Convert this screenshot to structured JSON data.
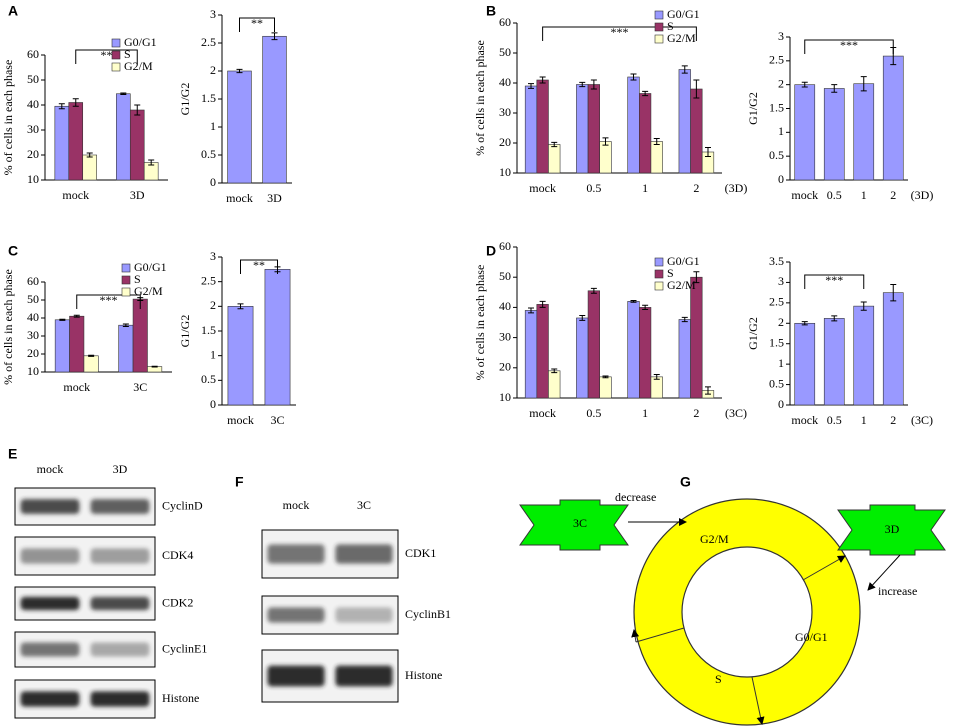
{
  "panel_labels": [
    "A",
    "B",
    "C",
    "D",
    "E",
    "F",
    "G"
  ],
  "chart_data": [
    {
      "type": "bar",
      "ylabel": "% of cells in each phase",
      "annotation": "**",
      "categories": [
        "mock",
        "3D"
      ],
      "series": [
        {
          "name": "G0/G1",
          "color": "#9999ff",
          "values": [
            39.5,
            44.5
          ],
          "errors": [
            1,
            0.3
          ]
        },
        {
          "name": "S",
          "color": "#993366",
          "values": [
            41,
            38
          ],
          "errors": [
            1.5,
            2
          ]
        },
        {
          "name": "G2/M",
          "color": "#ffffcc",
          "values": [
            20,
            17
          ],
          "errors": [
            0.8,
            1
          ]
        }
      ],
      "ylim": [
        10,
        60
      ],
      "yticks": [
        10,
        20,
        30,
        40,
        50,
        60
      ]
    },
    {
      "type": "bar",
      "ylabel": "G1/G2",
      "annotation": "**",
      "categories": [
        "mock",
        "3D"
      ],
      "values": [
        2.0,
        2.62
      ],
      "errors": [
        0.03,
        0.06
      ],
      "color": "#9999ff",
      "ylim": [
        0,
        3
      ],
      "yticks": [
        0,
        0.5,
        1,
        1.5,
        2,
        2.5,
        3
      ]
    },
    {
      "type": "bar",
      "ylabel": "% of cells in each phase",
      "annotation": "***",
      "x_unit": "(3D)",
      "categories": [
        "mock",
        "0.5",
        "1",
        "2"
      ],
      "series": [
        {
          "name": "G0/G1",
          "color": "#9999ff",
          "values": [
            39,
            39.5,
            42,
            44.5
          ],
          "errors": [
            0.8,
            0.7,
            1,
            1.2
          ]
        },
        {
          "name": "S",
          "color": "#993366",
          "values": [
            41,
            39.5,
            36.5,
            38
          ],
          "errors": [
            1,
            1.5,
            0.7,
            3
          ]
        },
        {
          "name": "G2/M",
          "color": "#ffffcc",
          "values": [
            19.5,
            20.5,
            20.5,
            17
          ],
          "errors": [
            0.7,
            1.2,
            1,
            1.5
          ]
        }
      ],
      "ylim": [
        10,
        60
      ],
      "yticks": [
        10,
        20,
        30,
        40,
        50,
        60
      ]
    },
    {
      "type": "bar",
      "ylabel": "G1/G2",
      "annotation": "***",
      "x_unit": "(3D)",
      "categories": [
        "mock",
        "0.5",
        "1",
        "2"
      ],
      "values": [
        2.0,
        1.92,
        2.02,
        2.6
      ],
      "errors": [
        0.05,
        0.08,
        0.15,
        0.18
      ],
      "color": "#9999ff",
      "ylim": [
        0,
        3
      ],
      "yticks": [
        0,
        0.5,
        1,
        1.5,
        2,
        2.5,
        3
      ]
    },
    {
      "type": "bar",
      "ylabel": "% of cells in each phase",
      "annotation": "***",
      "categories": [
        "mock",
        "3C"
      ],
      "series": [
        {
          "name": "G0/G1",
          "color": "#9999ff",
          "values": [
            39,
            36
          ],
          "errors": [
            0.3,
            0.7
          ]
        },
        {
          "name": "S",
          "color": "#993366",
          "values": [
            41,
            50.5
          ],
          "errors": [
            0.5,
            0.8
          ]
        },
        {
          "name": "G2/M",
          "color": "#ffffcc",
          "values": [
            19,
            13
          ],
          "errors": [
            0.3,
            0.2
          ]
        }
      ],
      "ylim": [
        10,
        60
      ],
      "yticks": [
        10,
        20,
        30,
        40,
        50,
        60
      ]
    },
    {
      "type": "bar",
      "ylabel": "G1/G2",
      "annotation": "**",
      "categories": [
        "mock",
        "3C"
      ],
      "values": [
        2.0,
        2.75
      ],
      "errors": [
        0.05,
        0.05
      ],
      "color": "#9999ff",
      "ylim": [
        0,
        3
      ],
      "yticks": [
        0,
        0.5,
        1,
        1.5,
        2,
        2.5,
        3
      ]
    },
    {
      "type": "bar",
      "ylabel": "% of cells in each phase",
      "x_unit": "(3C)",
      "categories": [
        "mock",
        "0.5",
        "1",
        "2"
      ],
      "series": [
        {
          "name": "G0/G1",
          "color": "#9999ff",
          "values": [
            39,
            36.5,
            42,
            36
          ],
          "errors": [
            0.8,
            0.8,
            0.3,
            0.7
          ]
        },
        {
          "name": "S",
          "color": "#993366",
          "values": [
            41,
            45.5,
            40,
            50
          ],
          "errors": [
            1,
            0.8,
            0.7,
            1.8
          ]
        },
        {
          "name": "G2/M",
          "color": "#ffffcc",
          "values": [
            19,
            17,
            17,
            12.5
          ],
          "errors": [
            0.6,
            0.3,
            0.8,
            1.2
          ]
        }
      ],
      "ylim": [
        10,
        60
      ],
      "yticks": [
        10,
        20,
        30,
        40,
        50,
        60
      ]
    },
    {
      "type": "bar",
      "ylabel": "G1/G2",
      "annotation": "***",
      "x_unit": "(3C)",
      "categories": [
        "mock",
        "0.5",
        "1",
        "2"
      ],
      "values": [
        2.0,
        2.12,
        2.42,
        2.75
      ],
      "errors": [
        0.04,
        0.06,
        0.1,
        0.2
      ],
      "color": "#9999ff",
      "ylim": [
        0,
        3.5
      ],
      "yticks": [
        0,
        0.5,
        1,
        1.5,
        2,
        2.5,
        3,
        3.5
      ]
    }
  ],
  "blot_e": {
    "lanes": [
      "mock",
      "3D"
    ],
    "bands": [
      "CyclinD",
      "CDK4",
      "CDK2",
      "CyclinE1",
      "Histone"
    ]
  },
  "blot_f": {
    "lanes": [
      "mock",
      "3C"
    ],
    "bands": [
      "CDK1",
      "CyclinB1",
      "Histone"
    ]
  },
  "diagram": {
    "phases": [
      "G2/M",
      "G0/G1",
      "S"
    ],
    "left_ribbon": "3C",
    "right_ribbon": "3D",
    "left_note": "decrease",
    "right_note": "increase"
  }
}
